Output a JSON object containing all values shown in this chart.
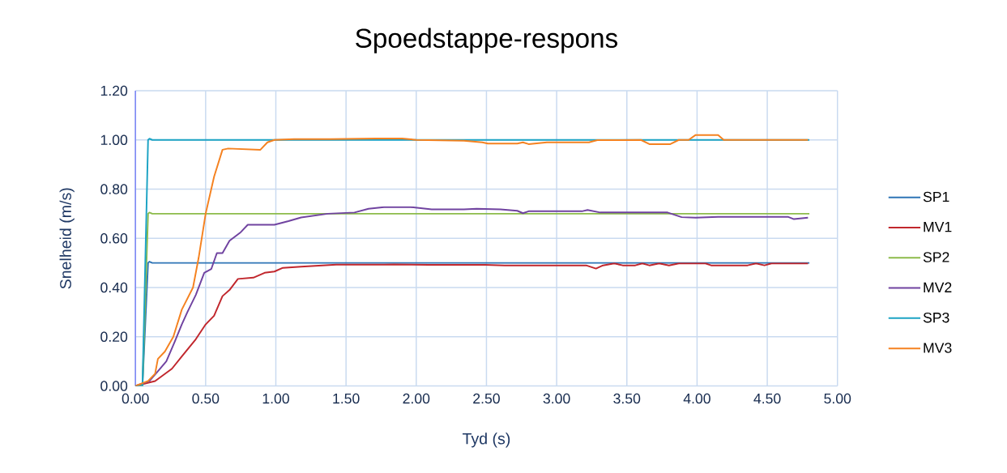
{
  "chart_data": {
    "type": "line",
    "title": "Spoedstappe-respons",
    "xlabel": "Tyd (s)",
    "ylabel": "Snelheid (m/s)",
    "xlim": [
      0,
      5
    ],
    "ylim": [
      0,
      1.2
    ],
    "xticks": [
      {
        "value": 0,
        "label": "0.00"
      },
      {
        "value": 0.5,
        "label": "0.50"
      },
      {
        "value": 1,
        "label": "1.00"
      },
      {
        "value": 1.5,
        "label": "1.50"
      },
      {
        "value": 2,
        "label": "2.00"
      },
      {
        "value": 2.5,
        "label": "2.50"
      },
      {
        "value": 3,
        "label": "3.00"
      },
      {
        "value": 3.5,
        "label": "3.50"
      },
      {
        "value": 4,
        "label": "4.00"
      },
      {
        "value": 4.5,
        "label": "4.50"
      },
      {
        "value": 5,
        "label": "5.00"
      }
    ],
    "yticks": [
      {
        "value": 0,
        "label": "0.00"
      },
      {
        "value": 0.2,
        "label": "0.20"
      },
      {
        "value": 0.4,
        "label": "0.40"
      },
      {
        "value": 0.6,
        "label": "0.60"
      },
      {
        "value": 0.8,
        "label": "0.80"
      },
      {
        "value": 1,
        "label": "1.00"
      },
      {
        "value": 1.2,
        "label": "1.20"
      }
    ],
    "grid": true,
    "legend": "right",
    "series": [
      {
        "name": "SP1",
        "color": "#2e75b6",
        "x": [
          0,
          0.05,
          0.09,
          0.1,
          0.12,
          4.8
        ],
        "values": [
          0,
          0,
          0.5,
          0.505,
          0.5,
          0.5
        ]
      },
      {
        "name": "MV1",
        "color": "#c1272d",
        "x": [
          0,
          0.14,
          0.26,
          0.33,
          0.43,
          0.5,
          0.56,
          0.62,
          0.67,
          0.73,
          0.84,
          0.92,
          0.99,
          1.05,
          1.18,
          1.43,
          1.77,
          1.84,
          2.09,
          2.49,
          2.63,
          3.21,
          3.28,
          3.33,
          3.41,
          3.47,
          3.56,
          3.61,
          3.66,
          3.73,
          3.8,
          3.87,
          4.06,
          4.1,
          4.36,
          4.42,
          4.48,
          4.53,
          4.79
        ],
        "values": [
          0,
          0.02,
          0.07,
          0.12,
          0.19,
          0.25,
          0.285,
          0.365,
          0.39,
          0.435,
          0.44,
          0.46,
          0.465,
          0.48,
          0.485,
          0.493,
          0.493,
          0.494,
          0.492,
          0.492,
          0.49,
          0.49,
          0.477,
          0.49,
          0.498,
          0.49,
          0.49,
          0.498,
          0.49,
          0.498,
          0.49,
          0.498,
          0.498,
          0.49,
          0.49,
          0.498,
          0.49,
          0.498,
          0.498
        ]
      },
      {
        "name": "SP2",
        "color": "#8cbb4a",
        "x": [
          0,
          0.05,
          0.09,
          0.1,
          0.12,
          4.8
        ],
        "values": [
          0,
          0,
          0.7,
          0.705,
          0.7,
          0.7
        ]
      },
      {
        "name": "MV2",
        "color": "#7043a0",
        "x": [
          0,
          0.1,
          0.16,
          0.22,
          0.28,
          0.33,
          0.37,
          0.43,
          0.49,
          0.54,
          0.58,
          0.62,
          0.67,
          0.75,
          0.8,
          0.99,
          1.09,
          1.18,
          1.37,
          1.56,
          1.66,
          1.77,
          1.96,
          2.11,
          2.34,
          2.43,
          2.6,
          2.72,
          2.76,
          2.8,
          3.18,
          3.22,
          3.31,
          3.79,
          3.89,
          3.99,
          4.15,
          4.65,
          4.69,
          4.79
        ],
        "values": [
          0,
          0.02,
          0.06,
          0.1,
          0.18,
          0.25,
          0.3,
          0.37,
          0.46,
          0.475,
          0.54,
          0.54,
          0.59,
          0.625,
          0.655,
          0.655,
          0.67,
          0.685,
          0.7,
          0.705,
          0.72,
          0.727,
          0.727,
          0.718,
          0.718,
          0.72,
          0.718,
          0.712,
          0.702,
          0.71,
          0.71,
          0.715,
          0.705,
          0.705,
          0.686,
          0.684,
          0.687,
          0.687,
          0.678,
          0.684
        ]
      },
      {
        "name": "SP3",
        "color": "#1ca3c4",
        "x": [
          0,
          0.05,
          0.09,
          0.1,
          0.12,
          4.8
        ],
        "values": [
          0,
          0,
          1.0,
          1.005,
          1.0,
          1.0
        ]
      },
      {
        "name": "MV3",
        "color": "#f58220",
        "x": [
          0,
          0.09,
          0.14,
          0.16,
          0.21,
          0.27,
          0.33,
          0.41,
          0.45,
          0.5,
          0.56,
          0.62,
          0.66,
          0.89,
          0.94,
          0.99,
          1.13,
          1.39,
          1.71,
          1.9,
          2.0,
          2.34,
          2.47,
          2.51,
          2.72,
          2.76,
          2.8,
          2.93,
          3.23,
          3.29,
          3.6,
          3.66,
          3.81,
          3.87,
          3.94,
          3.99,
          4.15,
          4.19,
          4.79
        ],
        "values": [
          0,
          0.02,
          0.05,
          0.11,
          0.14,
          0.2,
          0.31,
          0.4,
          0.52,
          0.7,
          0.85,
          0.96,
          0.965,
          0.96,
          0.99,
          1.0,
          1.003,
          1.003,
          1.006,
          1.006,
          1.0,
          0.997,
          0.99,
          0.985,
          0.985,
          0.99,
          0.983,
          0.99,
          0.99,
          0.999,
          1.0,
          0.983,
          0.983,
          1.0,
          1.0,
          1.02,
          1.02,
          1.0,
          1.0
        ]
      }
    ]
  }
}
